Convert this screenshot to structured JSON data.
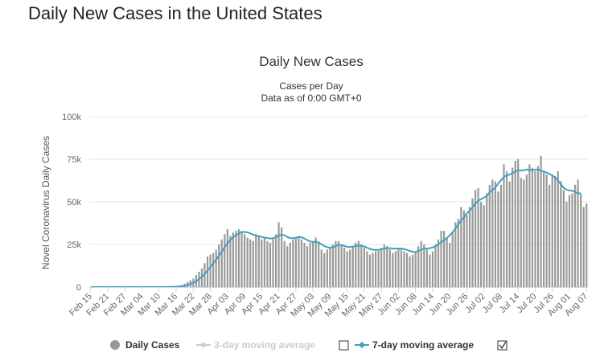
{
  "page_title": "Daily New Cases in the United States",
  "chart_data": {
    "type": "bar",
    "title": "Daily New Cases",
    "subtitle_line1": "Cases per Day",
    "subtitle_line2": "Data as of 0:00 GMT+0",
    "ylabel": "Novel Coronavirus Daily Cases",
    "xlabel": "",
    "ylim": [
      0,
      100000
    ],
    "yticks": [
      0,
      25000,
      50000,
      75000,
      100000
    ],
    "ytick_labels": [
      "0",
      "25k",
      "50k",
      "75k",
      "100k"
    ],
    "grid": true,
    "legend_position": "bottom",
    "x_tick_labels": [
      "Feb 15",
      "Feb 21",
      "Feb 27",
      "Mar 04",
      "Mar 10",
      "Mar 16",
      "Mar 22",
      "Mar 28",
      "Apr 03",
      "Apr 09",
      "Apr 15",
      "Apr 21",
      "Apr 27",
      "May 03",
      "May 09",
      "May 15",
      "May 21",
      "May 27",
      "Jun 02",
      "Jun 08",
      "Jun 14",
      "Jun 20",
      "Jun 26",
      "Jul 02",
      "Jul 08",
      "Jul 14",
      "Jul 20",
      "Jul 26",
      "Aug 01",
      "Aug 07"
    ],
    "start_date": "Feb 15",
    "series": [
      {
        "name": "Daily Cases",
        "type": "bar",
        "color": "#999999",
        "values": [
          0,
          0,
          0,
          0,
          0,
          0,
          0,
          0,
          0,
          0,
          0,
          0,
          0,
          0,
          0,
          0,
          0,
          0,
          0,
          0,
          0,
          0,
          0,
          0,
          0,
          100,
          150,
          200,
          300,
          400,
          500,
          800,
          1200,
          2000,
          3000,
          4000,
          5000,
          7000,
          9000,
          11000,
          14000,
          18000,
          19000,
          20000,
          22000,
          25000,
          28000,
          31000,
          34000,
          30000,
          32000,
          33000,
          34000,
          33000,
          31000,
          29000,
          28000,
          27000,
          31000,
          30000,
          28000,
          29000,
          27000,
          26000,
          29000,
          31000,
          38000,
          35000,
          27000,
          24000,
          26000,
          28000,
          29000,
          30000,
          28000,
          26000,
          24000,
          26000,
          27000,
          29000,
          26000,
          22000,
          20000,
          22000,
          23000,
          25000,
          27000,
          27000,
          25000,
          23000,
          21000,
          22000,
          24000,
          26000,
          27000,
          25000,
          23000,
          21000,
          19000,
          20000,
          21000,
          22000,
          23000,
          25000,
          24000,
          22000,
          20000,
          21000,
          23000,
          22000,
          21000,
          20000,
          18000,
          19000,
          21000,
          24000,
          27000,
          25000,
          22000,
          19000,
          21000,
          25000,
          28000,
          33000,
          33000,
          29000,
          26000,
          32000,
          38000,
          40000,
          47000,
          45000,
          42000,
          47000,
          52000,
          57000,
          58000,
          50000,
          48000,
          55000,
          60000,
          63000,
          62000,
          56000,
          60000,
          72000,
          68000,
          62000,
          70000,
          74000,
          75000,
          64000,
          63000,
          66000,
          72000,
          70000,
          68000,
          71000,
          77000,
          68000,
          66000,
          60000,
          65000,
          65000,
          68000,
          62000,
          57000,
          50000,
          54000,
          55000,
          60000,
          63000,
          55000,
          47000,
          49000
        ],
        "marker_color": "#999999"
      },
      {
        "name": "3-day moving average",
        "type": "line",
        "color": "#cccccc",
        "visible": false
      },
      {
        "name": "7-day moving average",
        "type": "line",
        "color": "#40a0c0",
        "visible": true,
        "values": [
          0,
          0,
          0,
          0,
          0,
          0,
          0,
          0,
          0,
          0,
          0,
          0,
          0,
          0,
          0,
          0,
          0,
          0,
          0,
          0,
          0,
          0,
          0,
          0,
          0,
          20,
          50,
          80,
          120,
          170,
          240,
          360,
          520,
          780,
          1200,
          1800,
          2500,
          3400,
          4600,
          6000,
          7700,
          9700,
          11800,
          13900,
          16100,
          18400,
          20800,
          23300,
          25800,
          27600,
          29200,
          30500,
          31500,
          32200,
          32300,
          32100,
          31500,
          30700,
          30200,
          29900,
          29400,
          29000,
          28800,
          28500,
          28600,
          29300,
          30200,
          30700,
          30400,
          29400,
          28700,
          28700,
          28900,
          29400,
          29200,
          28500,
          27500,
          26800,
          26500,
          26600,
          26200,
          25100,
          24100,
          23400,
          23100,
          23400,
          24100,
          24700,
          24600,
          24100,
          23600,
          23500,
          23700,
          24100,
          24300,
          24200,
          23800,
          23100,
          22400,
          21900,
          21800,
          21900,
          22100,
          22500,
          22800,
          22800,
          22600,
          22500,
          22600,
          22600,
          22300,
          21800,
          21200,
          20700,
          20600,
          21200,
          22000,
          22500,
          22600,
          22800,
          23200,
          24000,
          25200,
          26300,
          27500,
          28800,
          30300,
          32200,
          34300,
          36800,
          39000,
          40900,
          43100,
          44800,
          46800,
          49000,
          50600,
          51600,
          52400,
          53500,
          55500,
          57100,
          58300,
          60700,
          62700,
          64600,
          65500,
          66000,
          66700,
          67900,
          68500,
          68400,
          68500,
          69000,
          68700,
          68600,
          68900,
          69000,
          68300,
          67700,
          67200,
          66300,
          65600,
          64300,
          62500,
          60400,
          58200,
          57100,
          56700,
          56500,
          55800,
          54900,
          55000
        ]
      }
    ]
  },
  "legend": {
    "items": [
      {
        "label": "Daily Cases",
        "color": "#999999"
      },
      {
        "label": "3-day moving average",
        "color": "#cccccc"
      },
      {
        "label": "7-day moving average",
        "color": "#40a0c0"
      }
    ]
  }
}
